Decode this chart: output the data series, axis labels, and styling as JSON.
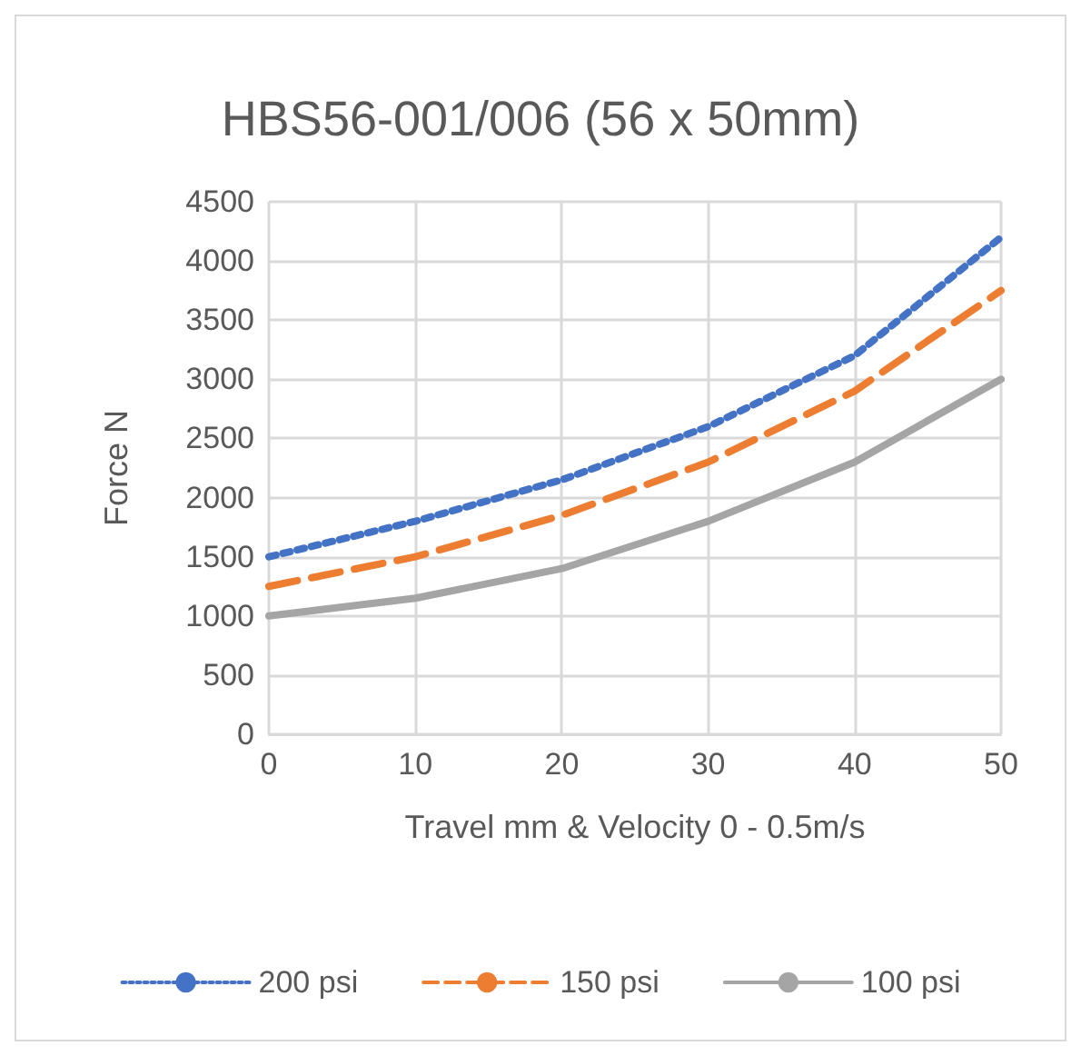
{
  "chart_data": {
    "type": "line",
    "title": "HBS56-001/006 (56 x 50mm)",
    "xlabel": "Travel mm & Velocity 0 - 0.5m/s",
    "ylabel": "Force N",
    "x": [
      0,
      10,
      20,
      30,
      40,
      50
    ],
    "series": [
      {
        "name": "200 psi",
        "color": "#4472c4",
        "line_style": "dotted",
        "values": [
          1500,
          1800,
          2150,
          2600,
          3200,
          4200
        ]
      },
      {
        "name": "150 psi",
        "color": "#ed7d31",
        "line_style": "dashed",
        "values": [
          1250,
          1500,
          1850,
          2300,
          2900,
          3750
        ]
      },
      {
        "name": "100 psi",
        "color": "#a5a5a5",
        "line_style": "solid",
        "values": [
          1000,
          1150,
          1400,
          1800,
          2300,
          3000
        ]
      }
    ],
    "xlim": [
      0,
      50
    ],
    "xticks": [
      0,
      10,
      20,
      30,
      40,
      50
    ],
    "ylim": [
      0,
      4500
    ],
    "yticks": [
      0,
      500,
      1000,
      1500,
      2000,
      2500,
      3000,
      3500,
      4000,
      4500
    ],
    "grid": true,
    "legend": "bottom",
    "marker": "none"
  }
}
